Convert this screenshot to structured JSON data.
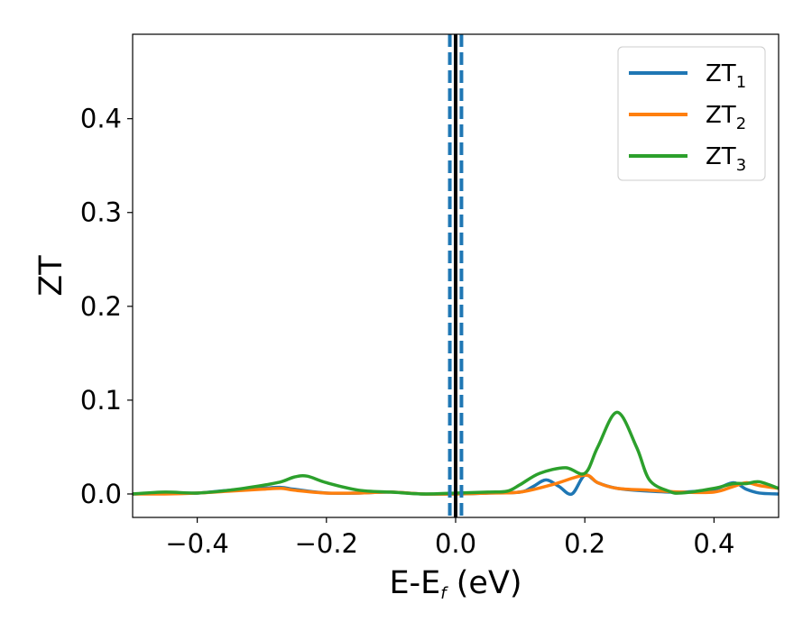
{
  "chart_data": {
    "type": "line",
    "xlabel": {
      "main": "E-E",
      "sub": "f",
      "unit": " (eV)"
    },
    "ylabel": "ZT",
    "xlim": [
      -0.5,
      0.5
    ],
    "ylim": [
      -0.025,
      0.49
    ],
    "xticks": [
      -0.4,
      -0.2,
      0.0,
      0.2,
      0.4
    ],
    "xtick_labels": [
      "−0.4",
      "−0.2",
      "0.0",
      "0.2",
      "0.4"
    ],
    "yticks": [
      0.0,
      0.1,
      0.2,
      0.3,
      0.4
    ],
    "ytick_labels": [
      "0.0",
      "0.1",
      "0.2",
      "0.3",
      "0.4"
    ],
    "grid": false,
    "legend_position": "top-right",
    "vertical_lines": [
      {
        "x": 0.0,
        "color": "#000000",
        "style": "solid"
      },
      {
        "x": -0.009,
        "color": "#1f77b4",
        "style": "dashed"
      },
      {
        "x": 0.009,
        "color": "#1f77b4",
        "style": "dashed"
      }
    ],
    "series": [
      {
        "name": "ZT",
        "sub": "1",
        "color": "#1f77b4",
        "x": [
          -0.5,
          -0.45,
          -0.4,
          -0.35,
          -0.3,
          -0.27,
          -0.25,
          -0.2,
          -0.15,
          -0.1,
          -0.05,
          0.0,
          0.05,
          0.1,
          0.12,
          0.14,
          0.16,
          0.18,
          0.2,
          0.22,
          0.25,
          0.3,
          0.35,
          0.4,
          0.43,
          0.45,
          0.47,
          0.5
        ],
        "y": [
          0.0,
          0.001,
          0.001,
          0.004,
          0.006,
          0.007,
          0.005,
          0.001,
          0.001,
          0.002,
          0.0,
          0.0,
          0.001,
          0.002,
          0.008,
          0.015,
          0.008,
          0.0,
          0.02,
          0.012,
          0.006,
          0.003,
          0.002,
          0.005,
          0.012,
          0.005,
          0.001,
          0.0
        ]
      },
      {
        "name": "ZT",
        "sub": "2",
        "color": "#ff7f0e",
        "x": [
          -0.5,
          -0.45,
          -0.4,
          -0.35,
          -0.3,
          -0.27,
          -0.25,
          -0.2,
          -0.15,
          -0.1,
          -0.05,
          0.0,
          0.05,
          0.1,
          0.15,
          0.2,
          0.22,
          0.25,
          0.3,
          0.35,
          0.4,
          0.43,
          0.45,
          0.47,
          0.5
        ],
        "y": [
          0.0,
          0.0,
          0.001,
          0.003,
          0.005,
          0.006,
          0.004,
          0.001,
          0.001,
          0.002,
          0.0,
          0.0,
          0.001,
          0.002,
          0.01,
          0.02,
          0.012,
          0.006,
          0.004,
          0.002,
          0.002,
          0.008,
          0.012,
          0.009,
          0.006
        ]
      },
      {
        "name": "ZT",
        "sub": "3",
        "color": "#2ca02c",
        "x": [
          -0.5,
          -0.45,
          -0.4,
          -0.35,
          -0.3,
          -0.27,
          -0.25,
          -0.23,
          -0.2,
          -0.15,
          -0.1,
          -0.05,
          0.0,
          0.05,
          0.08,
          0.1,
          0.13,
          0.17,
          0.2,
          0.22,
          0.25,
          0.28,
          0.3,
          0.33,
          0.35,
          0.4,
          0.43,
          0.45,
          0.47,
          0.5
        ],
        "y": [
          0.0,
          0.002,
          0.001,
          0.004,
          0.009,
          0.013,
          0.018,
          0.019,
          0.012,
          0.004,
          0.002,
          0.0,
          0.001,
          0.002,
          0.003,
          0.01,
          0.022,
          0.028,
          0.022,
          0.05,
          0.087,
          0.05,
          0.015,
          0.003,
          0.001,
          0.006,
          0.011,
          0.011,
          0.013,
          0.006
        ]
      }
    ]
  }
}
